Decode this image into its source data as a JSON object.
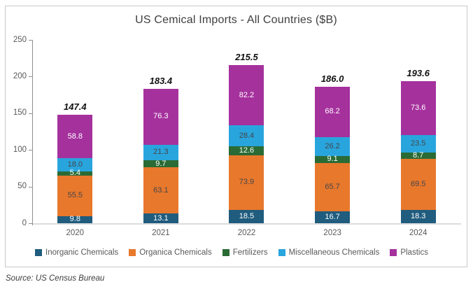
{
  "title": "US Cemical Imports - All Countries ($B)",
  "source_note": "Source: US Census Bureau",
  "chart_data": {
    "type": "bar",
    "stacked": true,
    "title": "US Cemical Imports - All Countries ($B)",
    "categories": [
      "2020",
      "2021",
      "2022",
      "2023",
      "2024"
    ],
    "series": [
      {
        "name": "Inorganic Chemicals",
        "color": "#1F5C7E",
        "label_color": "#FFFFFF",
        "values": [
          9.8,
          13.1,
          18.5,
          16.7,
          18.3
        ]
      },
      {
        "name": "Organica Chemicals",
        "color": "#E8782C",
        "label_color": "#44464A",
        "values": [
          55.5,
          63.1,
          73.9,
          65.7,
          69.5
        ]
      },
      {
        "name": "Fertilizers",
        "color": "#2A6B35",
        "label_color": "#FFFFFF",
        "values": [
          5.4,
          9.7,
          12.6,
          9.1,
          8.7
        ]
      },
      {
        "name": "Miscellaneous Chemicals",
        "color": "#29A5DE",
        "label_color": "#44464A",
        "values": [
          18.0,
          21.3,
          28.4,
          26.2,
          23.5
        ]
      },
      {
        "name": "Plastics",
        "color": "#A5319D",
        "label_color": "#FFFFFF",
        "values": [
          58.8,
          76.3,
          82.2,
          68.2,
          73.6
        ]
      }
    ],
    "totals": [
      147.4,
      183.4,
      215.5,
      186.0,
      193.6
    ],
    "y_ticks": [
      0,
      50,
      100,
      150,
      200,
      250
    ],
    "ylim": [
      0,
      250
    ],
    "grid": false,
    "legend_position": "bottom",
    "axis_color": "#8F8F8F",
    "tick_label_color": "#595959"
  }
}
